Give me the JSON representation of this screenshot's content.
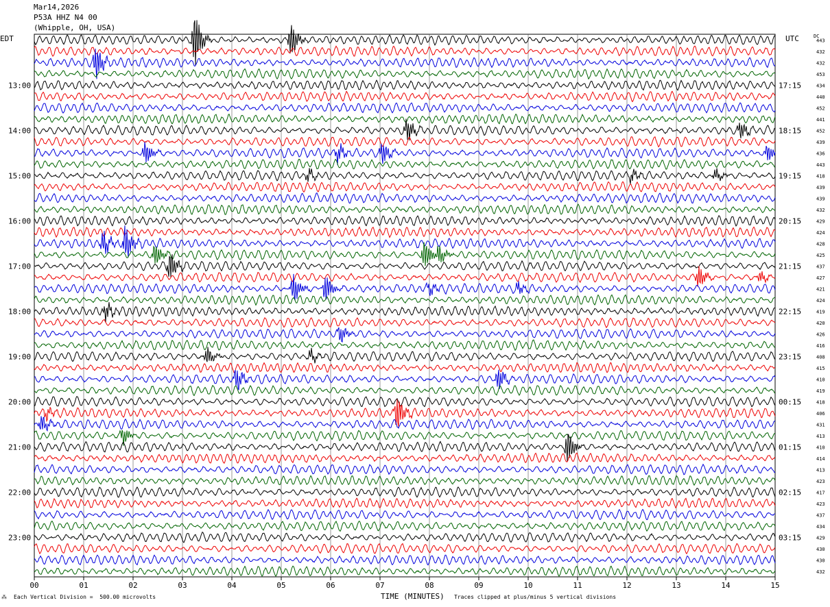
{
  "header": {
    "date": "Mar14,2026",
    "station": "P53A HHZ N4 00",
    "location": "(Whipple, OH, USA)"
  },
  "left_tz": "EDT",
  "right_tz": "UTC",
  "dc_label": "DC",
  "footer": {
    "scale": "Each Vertical Division =  500.00 microvolts",
    "xlabel": "TIME (MINUTES)",
    "clip": "Traces clipped at plus/minus 5 vertical divisions"
  },
  "chart_data": {
    "type": "line",
    "xlabel": "TIME (MINUTES)",
    "xlim": [
      0,
      15
    ],
    "x_ticks": [
      "00",
      "01",
      "02",
      "03",
      "04",
      "05",
      "06",
      "07",
      "08",
      "09",
      "10",
      "11",
      "12",
      "13",
      "14",
      "15"
    ],
    "trace_count": 48,
    "trace_colors": [
      "#000000",
      "#ee0000",
      "#0000dd",
      "#006400"
    ],
    "edt_hours": [
      "13:00",
      "14:00",
      "15:00",
      "16:00",
      "17:00",
      "18:00",
      "19:00",
      "20:00",
      "21:00",
      "22:00",
      "23:00"
    ],
    "utc_hours": [
      "17:15",
      "18:15",
      "19:15",
      "20:15",
      "21:15",
      "22:15",
      "23:15",
      "00:15",
      "01:15",
      "02:15",
      "03:15"
    ],
    "dc_offsets": [
      443,
      432,
      432,
      453,
      434,
      440,
      452,
      441,
      452,
      439,
      436,
      443,
      418,
      439,
      439,
      432,
      429,
      424,
      428,
      425,
      437,
      427,
      421,
      424,
      419,
      420,
      426,
      416,
      408,
      415,
      410,
      419,
      418,
      406,
      431,
      413,
      410,
      414,
      413,
      423,
      417,
      423,
      437,
      434,
      429,
      430,
      430,
      432
    ],
    "events": [
      {
        "trace": 0,
        "minute": 3.25,
        "amp": 5
      },
      {
        "trace": 0,
        "minute": 5.2,
        "amp": 3
      },
      {
        "trace": 2,
        "minute": 1.25,
        "amp": 3
      },
      {
        "trace": 8,
        "minute": 7.55,
        "amp": 2
      },
      {
        "trace": 8,
        "minute": 14.3,
        "amp": 1.5
      },
      {
        "trace": 10,
        "minute": 2.25,
        "amp": 2
      },
      {
        "trace": 10,
        "minute": 6.15,
        "amp": 1.5
      },
      {
        "trace": 10,
        "minute": 7.05,
        "amp": 2
      },
      {
        "trace": 10,
        "minute": 14.85,
        "amp": 1.5
      },
      {
        "trace": 12,
        "minute": 5.55,
        "amp": 1
      },
      {
        "trace": 12,
        "minute": 12.1,
        "amp": 1
      },
      {
        "trace": 12,
        "minute": 13.8,
        "amp": 1
      },
      {
        "trace": 18,
        "minute": 1.4,
        "amp": 2
      },
      {
        "trace": 18,
        "minute": 1.85,
        "amp": 3
      },
      {
        "trace": 19,
        "minute": 2.45,
        "amp": 2
      },
      {
        "trace": 19,
        "minute": 7.9,
        "amp": 2.5
      },
      {
        "trace": 19,
        "minute": 8.2,
        "amp": 1.5
      },
      {
        "trace": 20,
        "minute": 2.75,
        "amp": 2.5
      },
      {
        "trace": 21,
        "minute": 13.45,
        "amp": 2
      },
      {
        "trace": 21,
        "minute": 14.7,
        "amp": 1
      },
      {
        "trace": 22,
        "minute": 5.25,
        "amp": 2.5
      },
      {
        "trace": 22,
        "minute": 5.9,
        "amp": 2.5
      },
      {
        "trace": 22,
        "minute": 8.0,
        "amp": 1
      },
      {
        "trace": 22,
        "minute": 9.8,
        "amp": 1
      },
      {
        "trace": 24,
        "minute": 1.45,
        "amp": 1.5
      },
      {
        "trace": 26,
        "minute": 6.2,
        "amp": 1.5
      },
      {
        "trace": 28,
        "minute": 3.5,
        "amp": 1.5
      },
      {
        "trace": 28,
        "minute": 5.6,
        "amp": 1
      },
      {
        "trace": 30,
        "minute": 4.1,
        "amp": 2
      },
      {
        "trace": 30,
        "minute": 9.4,
        "amp": 2
      },
      {
        "trace": 33,
        "minute": 0.25,
        "amp": 1
      },
      {
        "trace": 33,
        "minute": 7.35,
        "amp": 3
      },
      {
        "trace": 34,
        "minute": 0.15,
        "amp": 1.5
      },
      {
        "trace": 35,
        "minute": 1.8,
        "amp": 1.5
      },
      {
        "trace": 36,
        "minute": 10.8,
        "amp": 3
      }
    ]
  }
}
